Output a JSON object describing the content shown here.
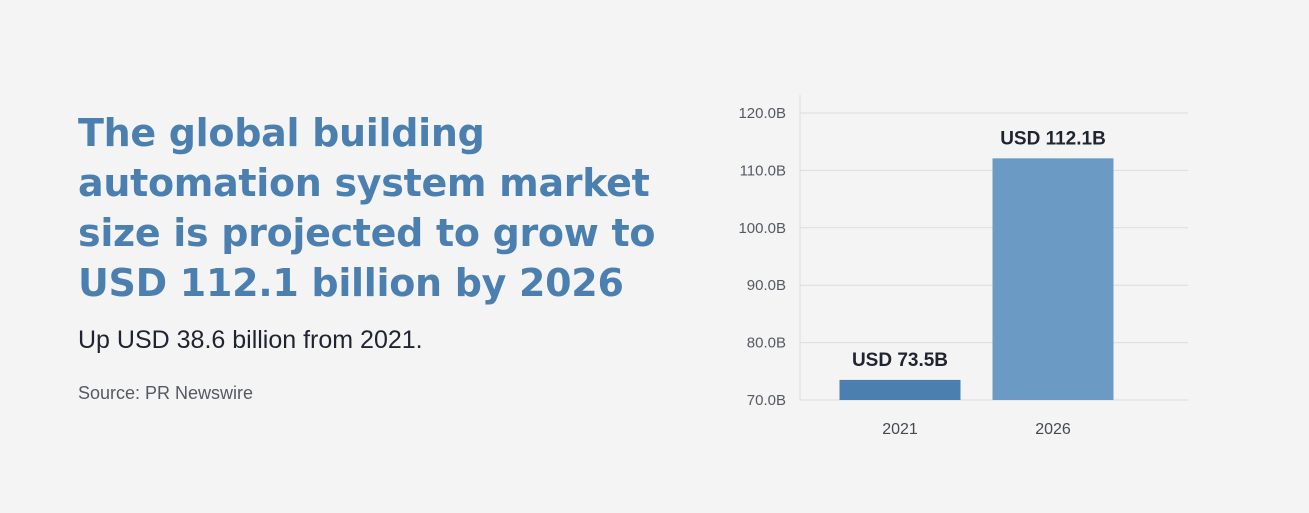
{
  "headline": "The global building automation system market size is projected to grow to USD 112.1 billion by 2026",
  "subline": "Up USD 38.6 billion from 2021.",
  "source": "Source:  PR Newswire",
  "colors": {
    "background": "#f4f4f4",
    "headline": "#4a7fb0",
    "bar_2021": "#4a7fb0",
    "bar_2026": "#6b9ac4",
    "grid": "#dcdcdc",
    "label_dark": "#1f2430"
  },
  "chart_data": {
    "type": "bar",
    "categories": [
      "2021",
      "2026"
    ],
    "values": [
      73.5,
      112.1
    ],
    "data_labels": [
      "USD 73.5B",
      "USD 112.1B"
    ],
    "title": "",
    "xlabel": "",
    "ylabel": "",
    "ylim": [
      70,
      120
    ],
    "yticks": [
      70,
      80,
      90,
      100,
      110,
      120
    ],
    "ytick_labels": [
      "70.0B",
      "80.0B",
      "90.0B",
      "100.0B",
      "110.0B",
      "120.0B"
    ],
    "grid": true
  }
}
